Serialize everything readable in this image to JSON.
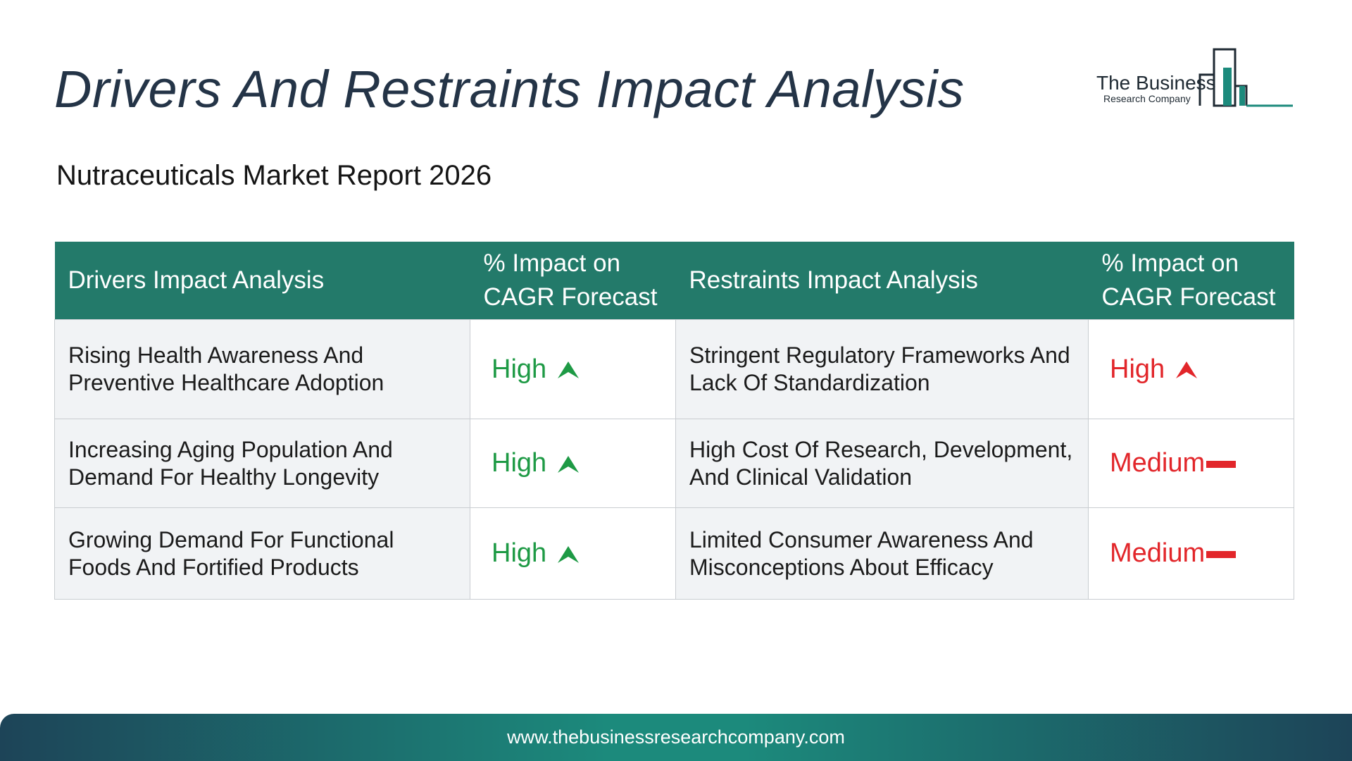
{
  "title": "Drivers And Restraints Impact Analysis",
  "subtitle": "Nutraceuticals Market Report 2026",
  "logo": {
    "line1": "The Business",
    "line2": "Research Company"
  },
  "table": {
    "headers": {
      "drivers": "Drivers Impact Analysis",
      "drivers_impact": "% Impact on CAGR Forecast",
      "restraints": "Restraints Impact Analysis",
      "restraints_impact": "% Impact on CAGR Forecast"
    },
    "rows": [
      {
        "driver": "Rising Health Awareness And Preventive Healthcare Adoption",
        "driver_impact": "High",
        "restraint": "Stringent Regulatory Frameworks And Lack Of Standardization",
        "restraint_impact": "High"
      },
      {
        "driver": "Increasing Aging Population And Demand For Healthy Longevity",
        "driver_impact": "High",
        "restraint": "High Cost Of Research, Development, And Clinical Validation",
        "restraint_impact": "Medium"
      },
      {
        "driver": "Growing Demand For Functional Foods And Fortified Products",
        "driver_impact": "High",
        "restraint": "Limited Consumer Awareness And Misconceptions About Efficacy",
        "restraint_impact": "Medium"
      }
    ]
  },
  "footer": {
    "url": "www.thebusinessresearchcompany.com"
  },
  "colors": {
    "header_bg": "#237a6a",
    "driver_impact": "#1e9a45",
    "restraint_impact": "#e2262a",
    "title": "#243447"
  },
  "icons": {
    "driver_indicator": "green-up-arrow-icon",
    "restraint_high_indicator": "red-up-arrow-icon",
    "restraint_medium_indicator": "red-dash-icon"
  }
}
